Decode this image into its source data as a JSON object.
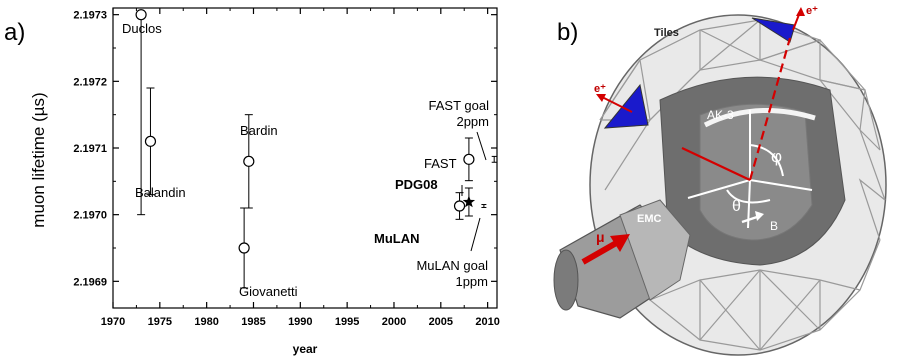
{
  "panel_labels": {
    "a": "a)",
    "b": "b)"
  },
  "chart_data": {
    "type": "scatter",
    "title": "",
    "xlabel": "year",
    "ylabel": "muon lifetime (µs)",
    "xlim": [
      1970,
      2011
    ],
    "ylim": [
      2.19686,
      2.19731
    ],
    "xticks": [
      "1970",
      "1975",
      "1980",
      "1985",
      "1990",
      "1995",
      "2000",
      "2005",
      "2010"
    ],
    "yticks": [
      "2.1969",
      "2.1970",
      "2.1971",
      "2.1972",
      "2.1973"
    ],
    "grid": false,
    "points": [
      {
        "label": "Duclos",
        "x": 1973,
        "y": 2.1973,
        "err_low": 0.0003,
        "err_high": 0.0,
        "marker": "circle",
        "bold": false
      },
      {
        "label": "Balandin",
        "x": 1974,
        "y": 2.19711,
        "err_low": 8e-05,
        "err_high": 8e-05,
        "marker": "circle",
        "bold": false
      },
      {
        "label": "Giovanetti",
        "x": 1984,
        "y": 2.19695,
        "err_low": 6e-05,
        "err_high": 6e-05,
        "marker": "circle",
        "bold": false
      },
      {
        "label": "Bardin",
        "x": 1984.5,
        "y": 2.19708,
        "err_low": 7e-05,
        "err_high": 7e-05,
        "marker": "circle",
        "bold": false
      },
      {
        "label": "MuLAN",
        "x": 2007,
        "y": 2.197013,
        "err_low": 2e-05,
        "err_high": 2e-05,
        "marker": "circle",
        "bold": true
      },
      {
        "label": "FAST",
        "x": 2008,
        "y": 2.197083,
        "err_low": 3.2e-05,
        "err_high": 3.2e-05,
        "marker": "circle",
        "bold": false
      },
      {
        "label": "PDG08",
        "x": 2008,
        "y": 2.197019,
        "err_low": 2.1e-05,
        "err_high": 2.1e-05,
        "marker": "star",
        "bold": true
      },
      {
        "label": "FAST goal 2ppm",
        "x": 2010.7,
        "y": 2.197083,
        "err_low": 4.4e-06,
        "err_high": 4.4e-06,
        "marker": "none",
        "bold": false
      },
      {
        "label": "MuLAN goal 1ppm",
        "x": 2009.6,
        "y": 2.197013,
        "err_low": 2.2e-06,
        "err_high": 2.2e-06,
        "marker": "none",
        "bold": false
      }
    ],
    "annotation_lines": [
      "FAST goal",
      "2ppm",
      "MuLAN goal",
      "1ppm"
    ]
  },
  "detector": {
    "labels": {
      "tiles": "Tiles",
      "e_plus_1": "e⁺",
      "e_plus_2": "e⁺",
      "ak3": "AK-3",
      "phi": "φ",
      "theta": "θ",
      "b_field": "B",
      "emc": "EMC",
      "mu": "μ"
    },
    "colors": {
      "accent_red": "#d40000",
      "tile_blue": "#1a1acc"
    }
  }
}
